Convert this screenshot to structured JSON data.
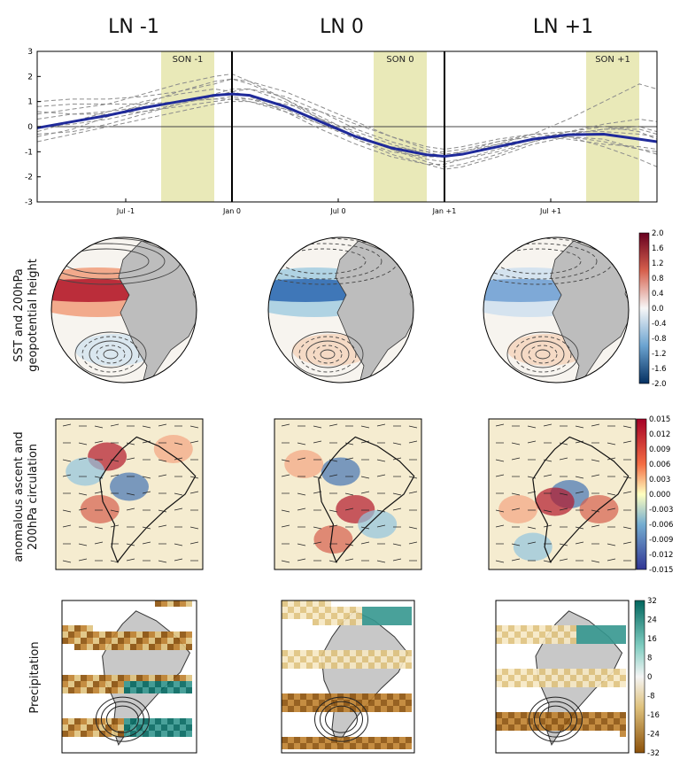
{
  "column_titles": [
    "LN -1",
    "LN 0",
    "LN +1"
  ],
  "row_labels": {
    "sst": [
      "SST and 200hPa",
      "geopotential height"
    ],
    "ascent": [
      "anomalous ascent and",
      "200hPa circulation"
    ],
    "precip": [
      "Precipitation"
    ]
  },
  "colorbar_sst": {
    "ticks": [
      "2.0",
      "1.6",
      "1.2",
      "0.8",
      "0.4",
      "0.0",
      "-0.4",
      "-0.8",
      "-1.2",
      "-1.6",
      "-2.0"
    ],
    "colors": {
      "pos": "#a50f15",
      "neg": "#2b5aa8"
    }
  },
  "colorbar_ascent": {
    "ticks": [
      "0.015",
      "0.012",
      "0.009",
      "0.006",
      "0.003",
      "0.000",
      "-0.003",
      "-0.006",
      "-0.009",
      "-0.012",
      "-0.015"
    ]
  },
  "colorbar_precip": {
    "ticks": [
      "32",
      "24",
      "16",
      "8",
      "0",
      "-8",
      "-16",
      "-24",
      "-32"
    ]
  },
  "chart_data": {
    "type": "line",
    "ylim": [
      -3,
      3
    ],
    "yticks": [
      "3",
      "2",
      "1",
      "0",
      "-1",
      "-2",
      "-3"
    ],
    "xlim": [
      0,
      35
    ],
    "xtick_positions": [
      5,
      11,
      17,
      23,
      29
    ],
    "xtick_labels": [
      "Jul -1",
      "Jan 0",
      "Jul 0",
      "Jan +1",
      "Jul +1"
    ],
    "shaded_spans": [
      {
        "label": "SON -1",
        "start": 7,
        "end": 10
      },
      {
        "label": "SON 0",
        "start": 19,
        "end": 22
      },
      {
        "label": "SON +1",
        "start": 31,
        "end": 34
      }
    ],
    "vertical_lines": [
      11,
      23
    ],
    "mean_series": {
      "x": [
        0,
        2,
        4,
        6,
        8,
        10,
        11,
        12,
        14,
        16,
        18,
        20,
        22,
        23,
        24,
        26,
        28,
        30,
        32,
        34,
        35
      ],
      "y": [
        -0.05,
        0.2,
        0.45,
        0.75,
        1.0,
        1.25,
        1.3,
        1.25,
        0.8,
        0.2,
        -0.4,
        -0.85,
        -1.12,
        -1.18,
        -1.1,
        -0.8,
        -0.5,
        -0.32,
        -0.3,
        -0.5,
        -0.6
      ]
    },
    "member_series": [
      {
        "y": [
          0.5,
          0.7,
          0.9,
          1.3,
          1.7,
          2.0,
          2.1,
          1.8,
          1.1,
          0.3,
          -0.4,
          -0.9,
          -1.3,
          -1.4,
          -1.3,
          -1.0,
          -0.6,
          -0.3,
          -0.1,
          0.0,
          -0.2
        ]
      },
      {
        "y": [
          0.0,
          0.1,
          0.3,
          0.6,
          0.9,
          1.2,
          1.4,
          1.5,
          1.2,
          0.6,
          -0.1,
          -0.6,
          -1.0,
          -1.2,
          -1.1,
          -0.7,
          -0.3,
          0.3,
          1.0,
          1.7,
          1.5
        ]
      },
      {
        "y": [
          -0.3,
          -0.2,
          0.1,
          0.5,
          0.9,
          1.3,
          1.5,
          1.5,
          1.0,
          0.3,
          -0.5,
          -1.1,
          -1.5,
          -1.7,
          -1.6,
          -1.2,
          -0.7,
          -0.4,
          -0.5,
          -0.9,
          -1.1
        ]
      },
      {
        "y": [
          1.0,
          1.1,
          1.1,
          1.2,
          1.4,
          1.7,
          1.9,
          1.8,
          1.4,
          0.8,
          0.2,
          -0.4,
          -0.9,
          -1.1,
          -1.0,
          -0.6,
          -0.3,
          -0.2,
          -0.2,
          -0.3,
          -0.4
        ]
      },
      {
        "y": [
          -0.6,
          -0.3,
          0.0,
          0.3,
          0.6,
          0.9,
          1.0,
          1.0,
          0.7,
          0.3,
          -0.2,
          -0.7,
          -1.1,
          -1.2,
          -1.0,
          -0.7,
          -0.5,
          -0.4,
          -0.6,
          -0.9,
          -1.0
        ]
      },
      {
        "y": [
          0.6,
          0.5,
          0.5,
          0.6,
          0.8,
          1.0,
          1.1,
          1.1,
          0.9,
          0.6,
          0.1,
          -0.4,
          -0.8,
          -0.9,
          -0.8,
          -0.5,
          -0.3,
          -0.4,
          -0.8,
          -1.3,
          -1.6
        ]
      },
      {
        "y": [
          -0.4,
          -0.1,
          0.4,
          0.9,
          1.4,
          1.8,
          1.9,
          1.7,
          1.1,
          0.4,
          -0.3,
          -0.9,
          -1.4,
          -1.6,
          -1.5,
          -1.1,
          -0.6,
          -0.2,
          0.1,
          0.3,
          0.2
        ]
      },
      {
        "y": [
          0.3,
          0.5,
          0.6,
          0.8,
          1.0,
          1.1,
          1.2,
          1.1,
          0.7,
          0.1,
          -0.5,
          -1.0,
          -1.2,
          -1.2,
          -1.1,
          -0.8,
          -0.5,
          -0.3,
          -0.1,
          -0.1,
          -0.3
        ]
      },
      {
        "y": [
          -0.2,
          0.2,
          0.6,
          1.0,
          1.3,
          1.5,
          1.4,
          1.2,
          0.6,
          -0.1,
          -0.7,
          -1.2,
          -1.5,
          -1.5,
          -1.3,
          -0.9,
          -0.5,
          -0.2,
          0.0,
          -0.2,
          -0.5
        ]
      },
      {
        "y": [
          0.8,
          0.9,
          0.9,
          0.9,
          1.0,
          1.1,
          1.1,
          1.0,
          0.6,
          0.1,
          -0.4,
          -0.8,
          -1.0,
          -1.0,
          -0.9,
          -0.6,
          -0.4,
          -0.5,
          -0.7,
          -0.8,
          -0.9
        ]
      }
    ],
    "colors": {
      "mean": "#1f2a9a",
      "members": "#8c8c8c",
      "shade": "#e9e9b8"
    }
  }
}
